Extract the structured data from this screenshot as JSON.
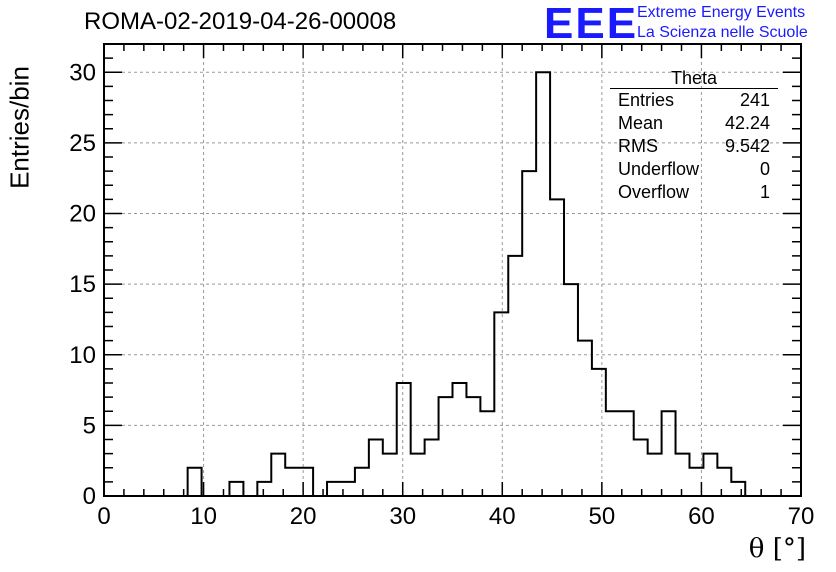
{
  "header": {
    "title": "ROMA-02-2019-04-26-00008",
    "logo_text": "EEE",
    "logo_line1": "Extreme Energy Events",
    "logo_line2": "La Scienza nelle Scuole",
    "logo_color": "#1a1aff"
  },
  "stats": {
    "name": "Theta",
    "rows": [
      {
        "label": "Entries",
        "value": "241"
      },
      {
        "label": "Mean",
        "value": "42.24"
      },
      {
        "label": "RMS",
        "value": "9.542"
      },
      {
        "label": "Underflow",
        "value": "0"
      },
      {
        "label": "Overflow",
        "value": "1"
      }
    ]
  },
  "chart_data": {
    "type": "bar",
    "histogram": true,
    "xlabel": "θ [°]",
    "ylabel": "Entries/bin",
    "xlim": [
      0,
      70
    ],
    "ylim": [
      0,
      32
    ],
    "grid": true,
    "xticks": [
      0,
      10,
      20,
      30,
      40,
      50,
      60,
      70
    ],
    "yticks": [
      0,
      5,
      10,
      15,
      20,
      25,
      30
    ],
    "bin_edges": [
      0,
      1.4,
      2.8,
      4.2,
      5.6,
      7,
      8.4,
      9.8,
      11.2,
      12.6,
      14,
      15.4,
      16.8,
      18.2,
      19.6,
      21,
      22.4,
      23.8,
      25.2,
      26.6,
      28,
      29.4,
      30.8,
      32.2,
      33.6,
      35,
      36.4,
      37.8,
      39.2,
      40.6,
      42,
      43.4,
      44.8,
      46.2,
      47.6,
      49,
      50.4,
      51.8,
      53.2,
      54.6,
      56,
      57.4,
      58.8,
      60.2,
      61.6,
      63,
      64.4,
      65.8,
      67.2,
      68.6,
      70
    ],
    "values": [
      0,
      0,
      0,
      0,
      0,
      0,
      2,
      0,
      0,
      1,
      0,
      1,
      3,
      2,
      2,
      0,
      1,
      1,
      2,
      4,
      3,
      8,
      3,
      4,
      7,
      8,
      7,
      6,
      13,
      17,
      23,
      30,
      21,
      15,
      11,
      9,
      6,
      6,
      4,
      3,
      6,
      3,
      2,
      3,
      2,
      1,
      0,
      0,
      0,
      0
    ]
  }
}
